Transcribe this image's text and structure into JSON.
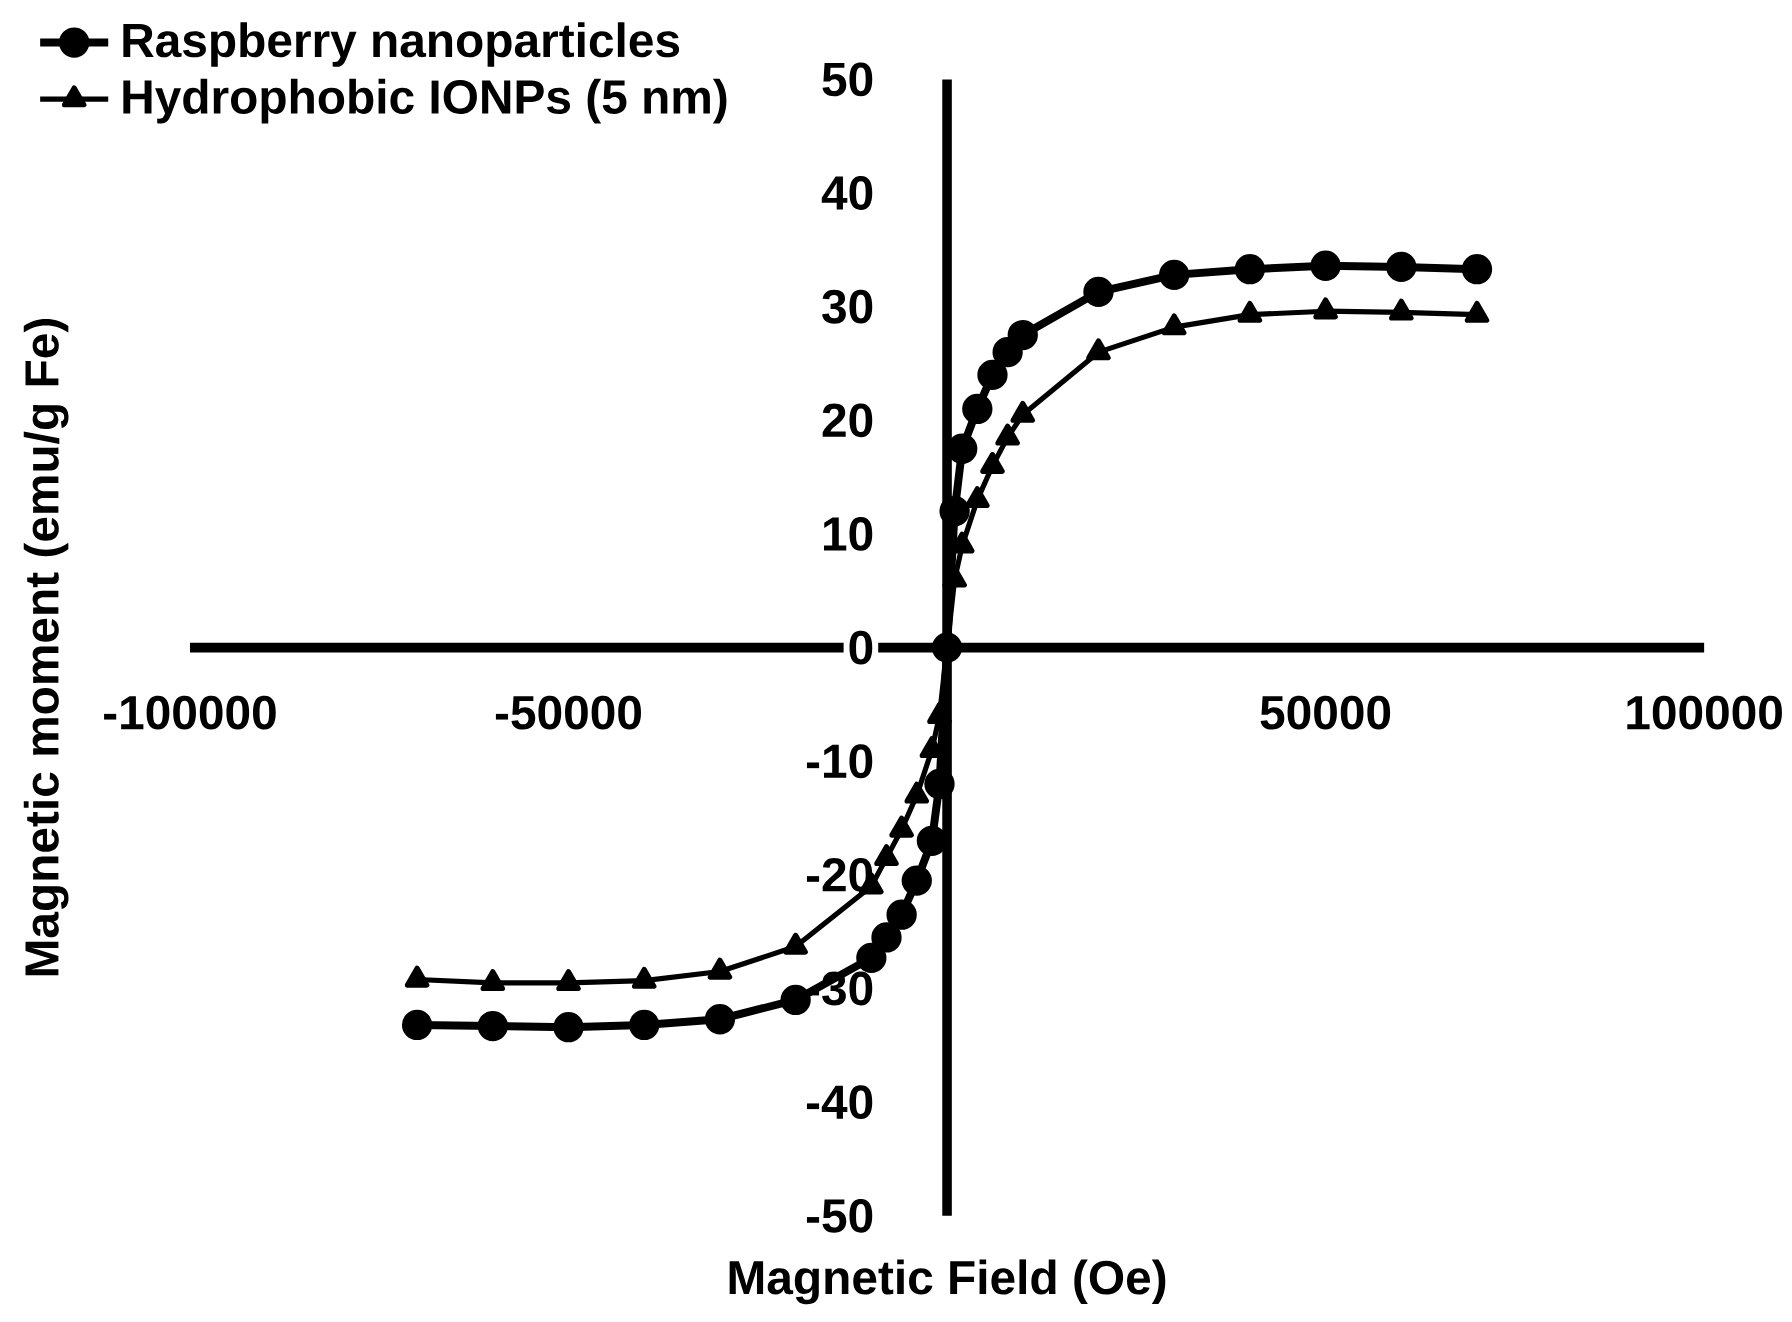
{
  "chart_data": {
    "type": "line",
    "xlabel": "Magnetic Field (Oe)",
    "ylabel": "Magnetic moment (emu/g Fe)",
    "x": [
      -70000,
      -60000,
      -50000,
      -40000,
      -30000,
      -20000,
      -10000,
      -8000,
      -6000,
      -4000,
      -2000,
      -1000,
      0,
      1000,
      2000,
      4000,
      6000,
      8000,
      10000,
      20000,
      30000,
      40000,
      50000,
      60000,
      70000
    ],
    "series": [
      {
        "name": "Raspberry nanoparticles",
        "color": "#000000",
        "marker": "circle",
        "values": [
          -33.2,
          -33.3,
          -33.4,
          -33.2,
          -32.7,
          -31,
          -27.3,
          -25.5,
          -23.5,
          -20.5,
          -17,
          -12,
          0,
          12,
          17.5,
          21,
          24,
          26,
          27.5,
          31.3,
          32.8,
          33.3,
          33.6,
          33.5,
          33.3
        ]
      },
      {
        "name": "Hydrophobic IONPs (5 nm)",
        "color": "#000000",
        "marker": "triangle",
        "values": [
          -29.2,
          -29.5,
          -29.5,
          -29.3,
          -28.5,
          -26.3,
          -21,
          -18.5,
          -16,
          -13,
          -9,
          -6,
          0,
          6,
          9,
          13,
          16,
          18.5,
          20.5,
          26,
          28.2,
          29.3,
          29.6,
          29.5,
          29.3
        ]
      }
    ],
    "xlim": [
      -100000,
      100000
    ],
    "ylim": [
      -50,
      50
    ],
    "xticks": [
      -100000,
      -50000,
      50000,
      100000
    ],
    "yticks": [
      -50,
      -40,
      -30,
      -20,
      -10,
      0,
      10,
      20,
      30,
      40,
      50
    ],
    "legend": "top left",
    "line_style": "solid",
    "grid": false
  }
}
